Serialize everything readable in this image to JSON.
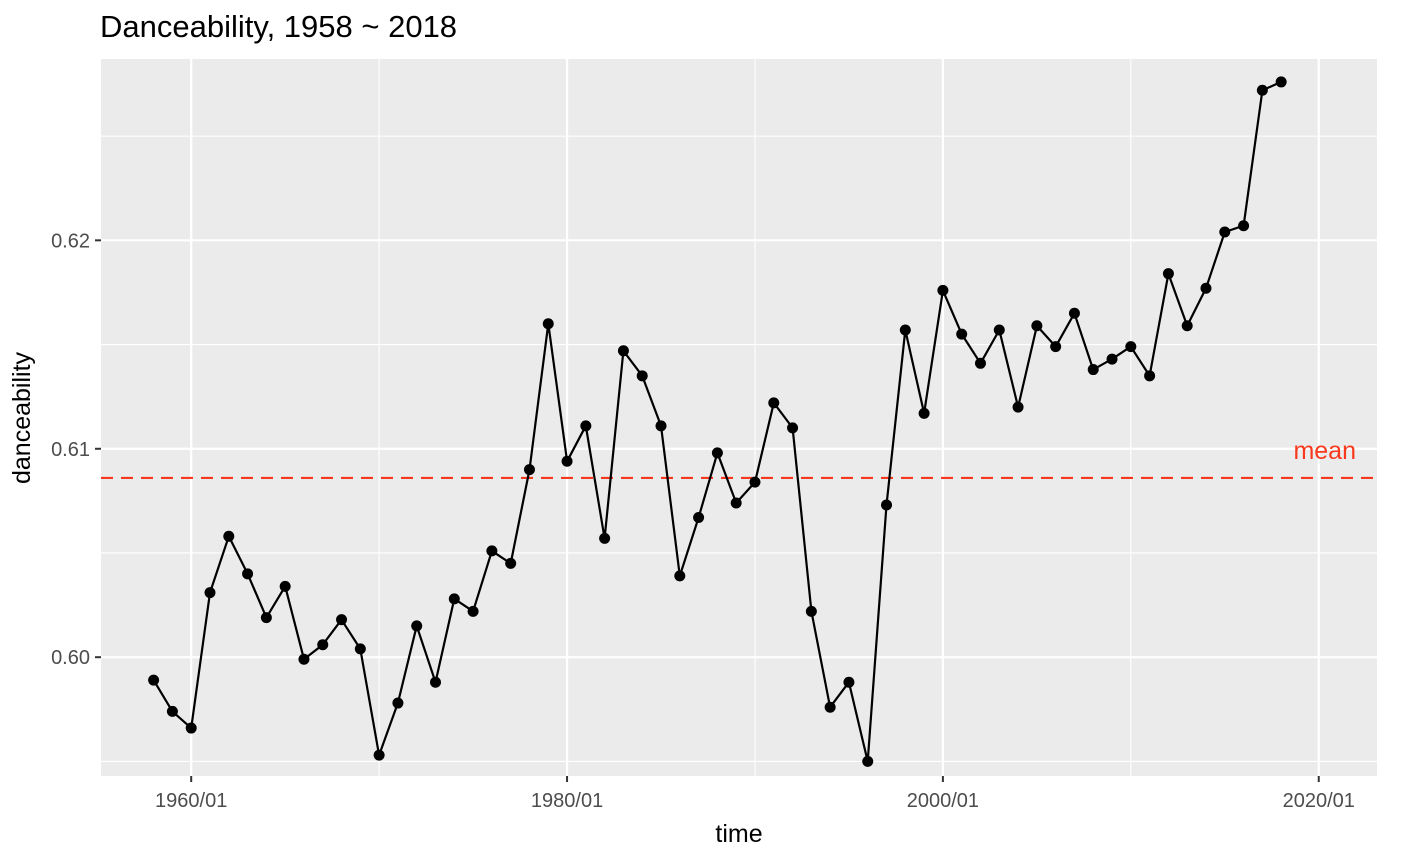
{
  "chart_data": {
    "type": "line",
    "title": "Danceability, 1958 ~ 2018",
    "xlabel": "time",
    "ylabel": "danceability",
    "x_tick_labels": [
      "1960/01",
      "1980/01",
      "2000/01",
      "2020/01"
    ],
    "x_ticks": [
      1960,
      1980,
      2000,
      2020
    ],
    "y_tick_labels": [
      "0.60",
      "0.61",
      "0.62"
    ],
    "y_ticks": [
      0.6,
      0.61,
      0.62
    ],
    "xlim": [
      1955.2,
      2023.1
    ],
    "ylim": [
      0.5943,
      0.6287
    ],
    "grid": true,
    "legend": "none",
    "mean_line": {
      "value": 0.6086,
      "label": "mean",
      "color": "#f8391e"
    },
    "series": [
      {
        "color": "#000000",
        "x": [
          1958,
          1959,
          1960,
          1961,
          1962,
          1963,
          1964,
          1965,
          1966,
          1967,
          1968,
          1969,
          1970,
          1971,
          1972,
          1973,
          1974,
          1975,
          1976,
          1977,
          1978,
          1979,
          1980,
          1981,
          1982,
          1983,
          1984,
          1985,
          1986,
          1987,
          1988,
          1989,
          1990,
          1991,
          1992,
          1993,
          1994,
          1995,
          1996,
          1997,
          1998,
          1999,
          2000,
          2001,
          2002,
          2003,
          2004,
          2005,
          2006,
          2007,
          2008,
          2009,
          2010,
          2011,
          2012,
          2013,
          2014,
          2015,
          2016,
          2017,
          2018
        ],
        "y": [
          0.5989,
          0.5974,
          0.5966,
          0.6031,
          0.6058,
          0.604,
          0.6019,
          0.6034,
          0.5999,
          0.6006,
          0.6018,
          0.6004,
          0.5953,
          0.5978,
          0.6015,
          0.5988,
          0.6028,
          0.6022,
          0.6051,
          0.6045,
          0.609,
          0.616,
          0.6094,
          0.6111,
          0.6057,
          0.6147,
          0.6135,
          0.6111,
          0.6039,
          0.6067,
          0.6098,
          0.6074,
          0.6084,
          0.6122,
          0.611,
          0.6022,
          0.5976,
          0.5988,
          0.595,
          0.6073,
          0.6157,
          0.6117,
          0.6176,
          0.6155,
          0.6141,
          0.6157,
          0.612,
          0.6159,
          0.6149,
          0.6165,
          0.6138,
          0.6143,
          0.6149,
          0.6135,
          0.6184,
          0.6159,
          0.6177,
          0.6204,
          0.6207,
          0.6272,
          0.6276
        ]
      }
    ]
  }
}
